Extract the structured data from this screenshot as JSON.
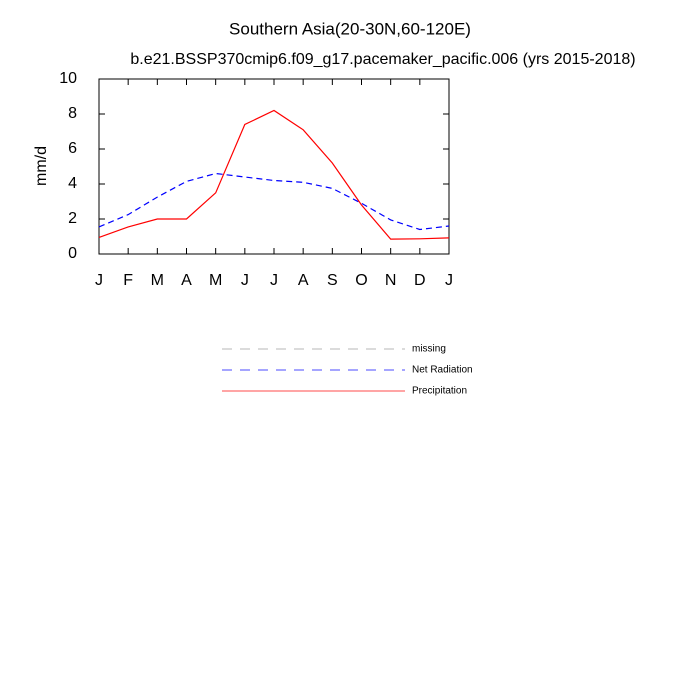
{
  "chart_data": {
    "type": "line",
    "title": "Southern Asia(20-30N,60-120E)",
    "subtitle": "b.e21.BSSP370cmip6.f09_g17.pacemaker_pacific.006 (yrs 2015-2018)",
    "y_label": "mm/d",
    "categories": [
      "J",
      "F",
      "M",
      "A",
      "M",
      "J",
      "J",
      "A",
      "S",
      "O",
      "N",
      "D",
      "J"
    ],
    "ylim": [
      0,
      10
    ],
    "yticks": [
      0,
      2,
      4,
      6,
      8,
      10
    ],
    "series": [
      {
        "name": "missing",
        "color": "#999999",
        "dash": true,
        "values": [
          null,
          null,
          null,
          null,
          null,
          null,
          null,
          null,
          null,
          null,
          null,
          null,
          null
        ]
      },
      {
        "name": "Net Radiation",
        "color": "#0000ff",
        "dash": true,
        "values": [
          1.55,
          2.25,
          3.25,
          4.15,
          4.6,
          4.4,
          4.2,
          4.1,
          3.75,
          2.9,
          1.95,
          1.4,
          1.6
        ]
      },
      {
        "name": "Precipitation",
        "color": "#ff0000",
        "dash": false,
        "values": [
          0.95,
          1.55,
          2.0,
          2.0,
          3.5,
          7.4,
          8.2,
          7.1,
          5.2,
          2.8,
          0.85,
          0.87,
          0.92
        ]
      }
    ]
  }
}
